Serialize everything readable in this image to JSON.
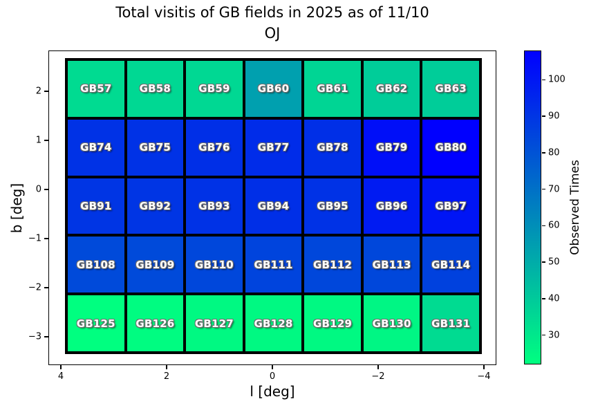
{
  "title": {
    "line1": "Total visitis of GB fields in 2025 as of 11/10",
    "line2": "OJ"
  },
  "axes": {
    "xlabel": "l [deg]",
    "ylabel": "b [deg]",
    "x_ticks": [
      {
        "label": "4",
        "value": 4
      },
      {
        "label": "2",
        "value": 2
      },
      {
        "label": "0",
        "value": 0
      },
      {
        "label": "−2",
        "value": -2
      },
      {
        "label": "−4",
        "value": -4
      }
    ],
    "y_ticks": [
      {
        "label": "2",
        "value": 2
      },
      {
        "label": "1",
        "value": 1
      },
      {
        "label": "0",
        "value": 0
      },
      {
        "label": "−1",
        "value": -1
      },
      {
        "label": "−2",
        "value": -2
      },
      {
        "label": "−3",
        "value": -3
      }
    ]
  },
  "colorbar": {
    "label": "Observed Times",
    "ticks": [
      100,
      90,
      80,
      70,
      60,
      50,
      40,
      30
    ],
    "vmin": 22,
    "vmax": 108,
    "color_low": "#00ff80",
    "color_high": "#0000ff",
    "colormap": "winter_r"
  },
  "chart_data": {
    "type": "heatmap",
    "title": "Total visitis of GB fields in 2025 as of 11/10\nOJ",
    "xlabel": "l [deg]",
    "ylabel": "b [deg]",
    "value_label": "Observed Times",
    "xlim": [
      4.25,
      -4.25
    ],
    "ylim": [
      -3.35,
      2.65
    ],
    "x_axis_inverted": true,
    "col_l_centers": [
      3.3,
      2.2,
      1.1,
      0.0,
      -1.1,
      -2.2,
      -3.3
    ],
    "row_b_centers": [
      2.0,
      0.8,
      -0.4,
      -1.6,
      -2.7
    ],
    "rows": [
      {
        "b": 2.0,
        "cells": [
          {
            "label": "GB57",
            "value": 34
          },
          {
            "label": "GB58",
            "value": 35
          },
          {
            "label": "GB59",
            "value": 35
          },
          {
            "label": "GB60",
            "value": 54
          },
          {
            "label": "GB61",
            "value": 36
          },
          {
            "label": "GB62",
            "value": 39
          },
          {
            "label": "GB63",
            "value": 39
          }
        ]
      },
      {
        "b": 0.8,
        "cells": [
          {
            "label": "GB74",
            "value": 91
          },
          {
            "label": "GB75",
            "value": 91
          },
          {
            "label": "GB76",
            "value": 92
          },
          {
            "label": "GB77",
            "value": 93
          },
          {
            "label": "GB78",
            "value": 92
          },
          {
            "label": "GB79",
            "value": 103
          },
          {
            "label": "GB80",
            "value": 108
          }
        ]
      },
      {
        "b": -0.4,
        "cells": [
          {
            "label": "GB91",
            "value": 90
          },
          {
            "label": "GB92",
            "value": 90
          },
          {
            "label": "GB93",
            "value": 91
          },
          {
            "label": "GB94",
            "value": 92
          },
          {
            "label": "GB95",
            "value": 91
          },
          {
            "label": "GB96",
            "value": 99
          },
          {
            "label": "GB97",
            "value": 101
          }
        ]
      },
      {
        "b": -1.6,
        "cells": [
          {
            "label": "GB108",
            "value": 83
          },
          {
            "label": "GB109",
            "value": 83
          },
          {
            "label": "GB110",
            "value": 84
          },
          {
            "label": "GB111",
            "value": 85
          },
          {
            "label": "GB112",
            "value": 84
          },
          {
            "label": "GB113",
            "value": 84
          },
          {
            "label": "GB114",
            "value": 86
          }
        ]
      },
      {
        "b": -2.7,
        "cells": [
          {
            "label": "GB125",
            "value": 22
          },
          {
            "label": "GB126",
            "value": 23
          },
          {
            "label": "GB127",
            "value": 24
          },
          {
            "label": "GB128",
            "value": 24
          },
          {
            "label": "GB129",
            "value": 24
          },
          {
            "label": "GB130",
            "value": 25
          },
          {
            "label": "GB131",
            "value": 34
          }
        ]
      }
    ]
  }
}
